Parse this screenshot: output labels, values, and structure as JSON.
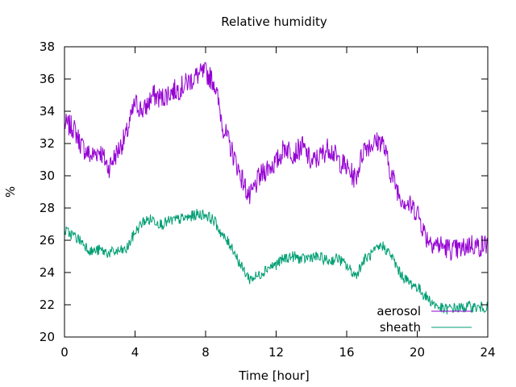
{
  "chart_data": {
    "type": "line",
    "title": "Relative humidity",
    "xlabel": "Time [hour]",
    "ylabel": "%",
    "xlim": [
      0,
      24
    ],
    "ylim": [
      20,
      38
    ],
    "xticks": [
      0,
      4,
      8,
      12,
      16,
      20,
      24
    ],
    "xtick_labels": [
      "0",
      "4",
      "8",
      "12",
      "16",
      "20",
      "24"
    ],
    "yticks": [
      20,
      22,
      24,
      26,
      28,
      30,
      32,
      34,
      36,
      38
    ],
    "ytick_labels": [
      "20",
      "22",
      "24",
      "26",
      "28",
      "30",
      "32",
      "34",
      "36",
      "38"
    ],
    "grid": false,
    "legend_position": "bottom-right",
    "series": [
      {
        "name": "aerosol",
        "color": "#9400d3",
        "x": [
          0,
          0.5,
          1,
          1.5,
          2,
          2.5,
          3,
          3.5,
          4,
          4.5,
          5,
          5.5,
          6,
          6.5,
          7,
          7.5,
          8,
          8.5,
          9,
          9.5,
          10,
          10.5,
          11,
          11.5,
          12,
          12.5,
          13,
          13.5,
          14,
          14.5,
          15,
          15.5,
          16,
          16.5,
          17,
          17.5,
          18,
          18.5,
          19,
          19.5,
          20,
          20.5,
          21,
          21.5,
          22,
          22.5,
          23,
          23.5,
          24
        ],
        "y": [
          33.2,
          33.0,
          31.8,
          31.2,
          31.6,
          30.5,
          31.5,
          32.5,
          34.5,
          34.0,
          35.0,
          34.8,
          35.2,
          35.4,
          35.8,
          36.2,
          36.4,
          35.8,
          33.0,
          31.5,
          30.0,
          28.6,
          29.8,
          30.5,
          30.8,
          31.8,
          31.4,
          31.8,
          30.8,
          31.2,
          31.8,
          31.0,
          30.5,
          29.8,
          31.8,
          32.0,
          32.2,
          30.2,
          28.8,
          28.2,
          27.8,
          26.2,
          25.8,
          25.6,
          25.4,
          25.4,
          25.8,
          25.6,
          25.8
        ]
      },
      {
        "name": "sheath",
        "color": "#009e73",
        "x": [
          0,
          0.5,
          1,
          1.5,
          2,
          2.5,
          3,
          3.5,
          4,
          4.5,
          5,
          5.5,
          6,
          6.5,
          7,
          7.5,
          8,
          8.5,
          9,
          9.5,
          10,
          10.5,
          11,
          11.5,
          12,
          12.5,
          13,
          13.5,
          14,
          14.5,
          15,
          15.5,
          16,
          16.5,
          17,
          17.5,
          18,
          18.5,
          19,
          19.5,
          20,
          20.5,
          21,
          21.5,
          22,
          22.5,
          23,
          23.5,
          24
        ],
        "y": [
          26.6,
          26.3,
          25.9,
          25.3,
          25.4,
          25.2,
          25.3,
          25.4,
          26.5,
          27.2,
          27.3,
          27.0,
          27.2,
          27.3,
          27.4,
          27.6,
          27.6,
          27.2,
          26.2,
          25.6,
          24.4,
          23.6,
          23.8,
          24.3,
          24.5,
          24.9,
          25.0,
          24.8,
          25.0,
          24.9,
          24.7,
          24.9,
          24.4,
          23.8,
          24.8,
          25.2,
          25.7,
          25.1,
          24.0,
          23.4,
          23.1,
          22.5,
          22.0,
          21.7,
          21.8,
          21.8,
          21.9,
          21.8,
          21.9
        ]
      }
    ]
  }
}
